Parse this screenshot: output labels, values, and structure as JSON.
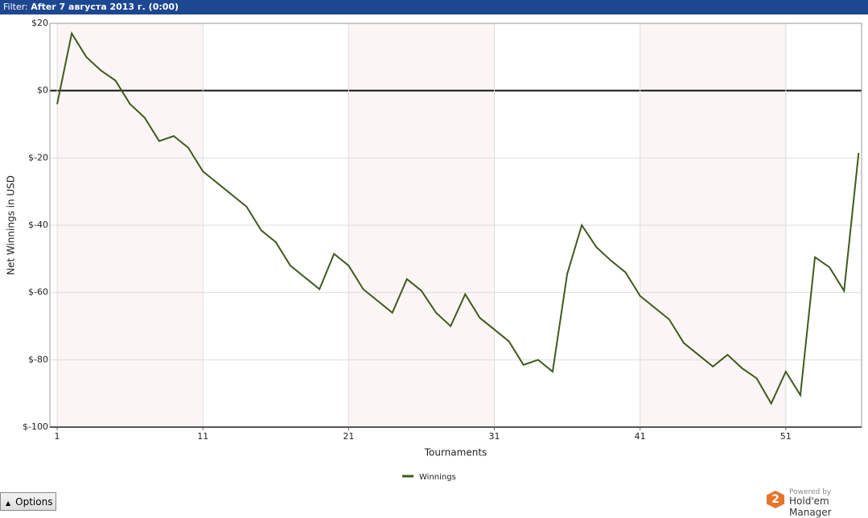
{
  "header": {
    "filter_label": "Filter:",
    "filter_value": "After 7 августа 2013 г. (0:00)"
  },
  "chart_data": {
    "type": "line",
    "x_label": "Tournaments",
    "y_label": "Net Winnings in USD",
    "x": [
      1,
      2,
      3,
      4,
      5,
      6,
      7,
      8,
      9,
      10,
      11,
      12,
      13,
      14,
      15,
      16,
      17,
      18,
      19,
      20,
      21,
      22,
      23,
      24,
      25,
      26,
      27,
      28,
      29,
      30,
      31,
      32,
      33,
      34,
      35,
      36,
      37,
      38,
      39,
      40,
      41,
      42,
      43,
      44,
      45,
      46,
      47,
      48,
      49,
      50,
      51,
      52,
      53,
      54,
      55,
      56
    ],
    "series": [
      {
        "name": "Winnings",
        "color": "#3f5a1e",
        "values": [
          -4,
          17,
          10,
          6,
          3,
          -4,
          -8,
          -15,
          -13.5,
          -17,
          -24,
          -27.5,
          -31,
          -34.5,
          -41.5,
          -45,
          -52,
          -55.5,
          -59,
          -48.5,
          -52,
          -59,
          -62.5,
          -66,
          -56,
          -59.5,
          -66,
          -70,
          -60.5,
          -67.5,
          -71,
          -74.5,
          -81.5,
          -80,
          -83.5,
          -54.5,
          -40,
          -46.5,
          -50.5,
          -54,
          -61,
          -64.5,
          -68,
          -75,
          -78.5,
          -82,
          -78.5,
          -82.5,
          -85.5,
          -93,
          -83.5,
          -90.5,
          -49.5,
          -52.5,
          -59.5,
          -18.5
        ]
      }
    ],
    "xlim": [
      0.5,
      56.2
    ],
    "ylim": [
      -100,
      20
    ],
    "xticks": [
      1,
      11,
      21,
      31,
      41,
      51
    ],
    "yticks": [
      {
        "value": -100,
        "label": "$-100"
      },
      {
        "value": -80,
        "label": "$-80"
      },
      {
        "value": -60,
        "label": "$-60"
      },
      {
        "value": -40,
        "label": "$-40"
      },
      {
        "value": -20,
        "label": "$-20"
      },
      {
        "value": 0,
        "label": "$0"
      },
      {
        "value": 20,
        "label": "$20"
      }
    ],
    "grid": true,
    "band_color": "#fbf5f5"
  },
  "footer": {
    "options": "Options",
    "powered": "Powered by",
    "brand": "Hold'em Manager",
    "logo": "2"
  }
}
